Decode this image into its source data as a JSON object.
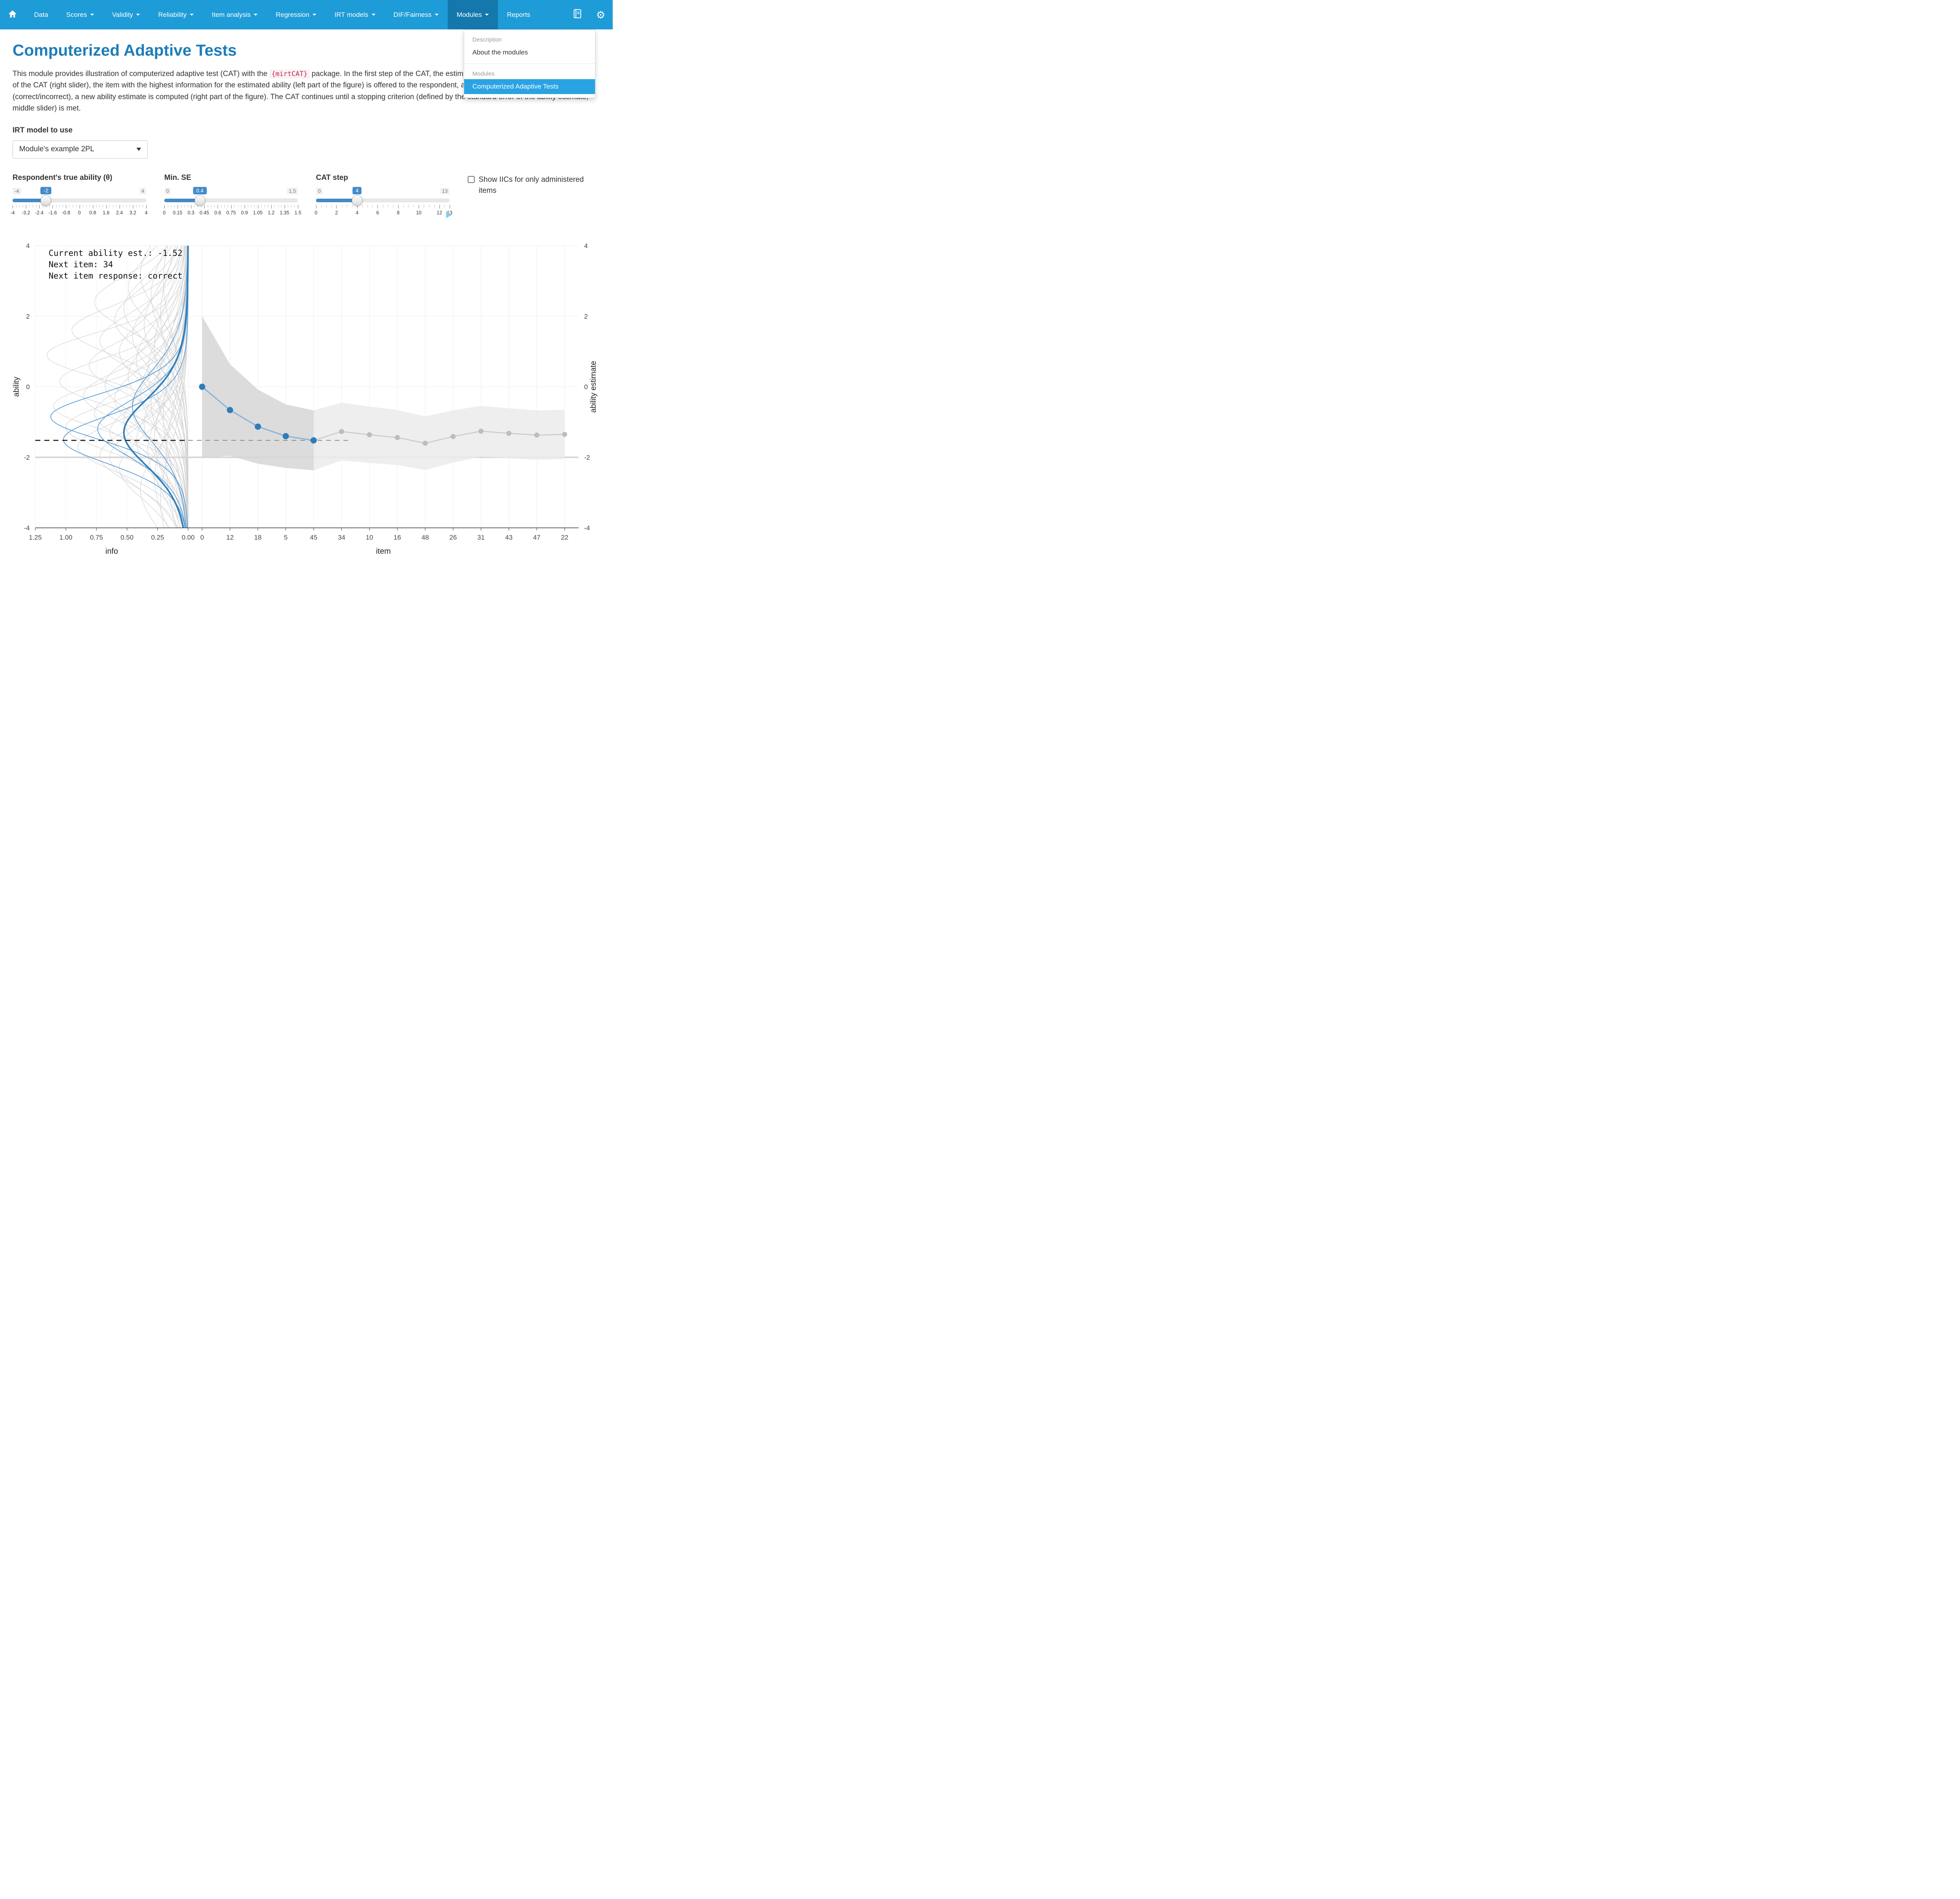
{
  "colors": {
    "navbar_bg": "#1e9cd7",
    "navbar_active_bg": "#1478ad",
    "dropdown_active_bg": "#29a3e3",
    "title_color": "#1d7db8",
    "accent": "#428bca",
    "code_color": "#c7254e",
    "code_bg": "#f9f2f4",
    "play_button": "#85cbf0",
    "chart_point_blue": "#2d7dbb",
    "chart_line_blue": "#8cb3d9",
    "chart_curve_blue": "#579bd5",
    "chart_thick_blue": "#2e7ebc",
    "chart_gray": "#bdbdbd"
  },
  "navbar": {
    "items": [
      {
        "label": "Data",
        "caret": false,
        "active": false
      },
      {
        "label": "Scores",
        "caret": true,
        "active": false
      },
      {
        "label": "Validity",
        "caret": true,
        "active": false
      },
      {
        "label": "Reliability",
        "caret": true,
        "active": false
      },
      {
        "label": "Item analysis",
        "caret": true,
        "active": false
      },
      {
        "label": "Regression",
        "caret": true,
        "active": false
      },
      {
        "label": "IRT models",
        "caret": true,
        "active": false
      },
      {
        "label": "DIF/Fairness",
        "caret": true,
        "active": false
      },
      {
        "label": "Modules",
        "caret": true,
        "active": true
      },
      {
        "label": "Reports",
        "caret": false,
        "active": false
      }
    ]
  },
  "modules_menu": {
    "section1_header": "Description",
    "item_about": "About the modules",
    "section2_header": "Modules",
    "item_cat": "Computerized Adaptive Tests"
  },
  "page": {
    "title": "Computerized Adaptive Tests",
    "intro_before_code": "This module provides illustration of computerized adaptive test (CAT) with the ",
    "intro_code": "{mirtCAT}",
    "intro_after_code": " package. In the first step of the CAT, the estimate of ability is preset at 0. In each step of the CAT (right slider), the item with the highest information for the estimated ability (left part of the figure) is offered to the respondent, and, based upon their answer (correct/incorrect), a new ability estimate is computed (right part of the figure). The CAT continues until a stopping criterion (defined by the standard error of the ability estimate, middle slider) is met."
  },
  "irt_model": {
    "label": "IRT model to use",
    "selected": "Module's example 2PL"
  },
  "sliders": [
    {
      "name": "true-ability",
      "label": "Respondent's true ability (θ)",
      "min": -4,
      "max": 4,
      "value": -2,
      "min_label": "-4",
      "max_label": "4",
      "value_label": "-2",
      "minor_divisions": 40,
      "tick_values": [
        -4,
        -3.2,
        -2.4,
        -1.6,
        -0.8,
        0,
        0.8,
        1.6,
        2.4,
        3.2,
        4
      ],
      "tick_labels": [
        "-4",
        "-3.2",
        "-2.4",
        "-1.6",
        "-0.8",
        "0",
        "0.8",
        "1.6",
        "2.4",
        "3.2",
        "4"
      ]
    },
    {
      "name": "min-se",
      "label": "Min. SE",
      "min": 0,
      "max": 1.5,
      "value": 0.4,
      "min_label": "0",
      "max_label": "1.5",
      "value_label": "0.4",
      "minor_divisions": 40,
      "tick_values": [
        0,
        0.15,
        0.3,
        0.45,
        0.6,
        0.75,
        0.9,
        1.05,
        1.2,
        1.35,
        1.5
      ],
      "tick_labels": [
        "0",
        "0.15",
        "0.3",
        "0.45",
        "0.6",
        "0.75",
        "0.9",
        "1.05",
        "1.2",
        "1.35",
        "1.5"
      ]
    },
    {
      "name": "cat-step",
      "label": "CAT step",
      "min": 0,
      "max": 13,
      "value": 4,
      "min_label": "0",
      "max_label": "13",
      "value_label": "4",
      "minor_divisions": 26,
      "tick_values": [
        0,
        2,
        4,
        6,
        8,
        10,
        12,
        13
      ],
      "tick_labels": [
        "0",
        "2",
        "4",
        "6",
        "8",
        "10",
        "12",
        "13"
      ]
    }
  ],
  "checkbox": {
    "label": "Show IICs for only administered items",
    "checked": false
  },
  "chart_data": {
    "type": "line",
    "annotation_lines": [
      "Current ability est.: -1.52",
      "Next item: 34",
      "Next item response: correct"
    ],
    "true_ability": -2,
    "current_ability_est": -1.52,
    "layout": {
      "ability_axis": {
        "label": "ability",
        "right_label": "ability estimate",
        "min": -4,
        "max": 4,
        "ticks": [
          4,
          2,
          0,
          -2,
          -4
        ]
      },
      "info_axis": {
        "label": "info",
        "min": 0,
        "max": 1.25,
        "tick_values": [
          1.25,
          1,
          0.75,
          0.5,
          0.25,
          0
        ],
        "tick_labels": [
          "1.25",
          "1.00",
          "0.75",
          "0.50",
          "0.25",
          "0.00"
        ]
      },
      "item_axis": {
        "label": "item"
      }
    },
    "cat": {
      "item_labels": [
        "0",
        "12",
        "18",
        "5",
        "45",
        "34",
        "10",
        "16",
        "48",
        "26",
        "31",
        "43",
        "47",
        "22"
      ],
      "administered": {
        "indices": [
          0,
          1,
          2,
          3,
          4
        ],
        "estimates": [
          0,
          -0.66,
          -1.13,
          -1.4,
          -1.52
        ],
        "se": [
          2.0,
          1.3,
          1.05,
          0.9,
          0.85
        ]
      },
      "future": {
        "indices": [
          5,
          6,
          7,
          8,
          9,
          10,
          11,
          12,
          13
        ],
        "estimates": [
          -1.27,
          -1.36,
          -1.44,
          -1.6,
          -1.41,
          -1.26,
          -1.32,
          -1.37,
          -1.35
        ],
        "se": [
          0.82,
          0.8,
          0.78,
          0.76,
          0.74,
          0.72,
          0.71,
          0.7,
          0.7
        ]
      }
    },
    "iic_curves": {
      "administered_ab": [
        [
          2.12,
          -0.85
        ],
        [
          2.02,
          -1.5
        ],
        [
          1.72,
          -1.2
        ],
        [
          1.35,
          -0.55
        ]
      ],
      "next_item_ab": [
        1.45,
        -1.3
      ],
      "others_ab": [
        [
          0.95,
          -3.2
        ],
        [
          1.25,
          -2.9
        ],
        [
          1.05,
          -2.6
        ],
        [
          1.5,
          -2.3
        ],
        [
          0.85,
          -2.1
        ],
        [
          1.7,
          -1.95
        ],
        [
          1.15,
          -1.8
        ],
        [
          1.9,
          -1.7
        ],
        [
          1.3,
          -1.55
        ],
        [
          1.05,
          -1.45
        ],
        [
          1.6,
          -1.3
        ],
        [
          2.0,
          -1.15
        ],
        [
          1.2,
          -1.05
        ],
        [
          1.45,
          -0.95
        ],
        [
          0.9,
          -0.85
        ],
        [
          1.75,
          -0.75
        ],
        [
          1.35,
          -0.65
        ],
        [
          2.1,
          -0.55
        ],
        [
          1.1,
          -0.45
        ],
        [
          1.55,
          -0.35
        ],
        [
          1.85,
          -0.25
        ],
        [
          1.25,
          -0.15
        ],
        [
          1.0,
          -0.05
        ],
        [
          1.65,
          0.05
        ],
        [
          2.05,
          0.15
        ],
        [
          1.4,
          0.3
        ],
        [
          1.15,
          0.45
        ],
        [
          1.8,
          0.6
        ],
        [
          1.3,
          0.75
        ],
        [
          2.15,
          0.9
        ],
        [
          1.5,
          1.0
        ],
        [
          1.05,
          1.15
        ],
        [
          1.7,
          1.3
        ],
        [
          1.35,
          1.45
        ],
        [
          1.95,
          1.6
        ],
        [
          1.2,
          1.75
        ],
        [
          1.55,
          1.9
        ],
        [
          0.95,
          2.05
        ],
        [
          1.45,
          2.2
        ],
        [
          1.75,
          2.4
        ],
        [
          1.1,
          2.6
        ],
        [
          1.4,
          2.8
        ],
        [
          0.9,
          3.0
        ],
        [
          1.25,
          3.2
        ],
        [
          1.6,
          -2.0
        ]
      ]
    }
  }
}
